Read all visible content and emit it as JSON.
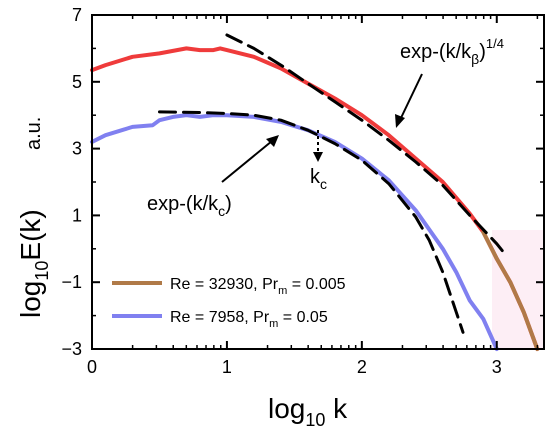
{
  "chart_data": {
    "type": "line",
    "xlabel": "log₁₀ k",
    "ylabel": "log₁₀E(k)",
    "yunit": "a.u.",
    "xlim": [
      0,
      3.35
    ],
    "ylim": [
      -3,
      7
    ],
    "xticks": [
      0,
      1,
      2,
      3
    ],
    "yticks": [
      -3,
      -1,
      1,
      3,
      5,
      7
    ],
    "xtick_labels": [
      "0",
      "1",
      "2",
      "3"
    ],
    "ytick_labels": [
      "−3",
      "−1",
      "1",
      "3",
      "5",
      "7"
    ],
    "grid": false,
    "legend_position": "bottom-left",
    "series": [
      {
        "name": "Re = 32930,  Pr_m = 0.005",
        "color": "#ef3b3b",
        "tail_color": "#b07a48",
        "x": [
          0,
          0.1,
          0.3,
          0.5,
          0.7,
          0.8,
          0.9,
          0.95,
          1.0,
          1.2,
          1.4,
          1.6,
          1.8,
          2.0,
          2.2,
          2.4,
          2.6,
          2.8,
          2.9,
          3.0,
          3.1,
          3.2,
          3.3
        ],
        "y": [
          5.35,
          5.5,
          5.75,
          5.85,
          6.0,
          5.95,
          5.95,
          6.0,
          5.95,
          5.75,
          5.4,
          4.95,
          4.5,
          4.0,
          3.4,
          2.7,
          2.0,
          1.05,
          0.5,
          -0.3,
          -1.0,
          -1.9,
          -3.0
        ]
      },
      {
        "name": "Re = 7958,   Pr_m = 0.05",
        "color": "#8080f0",
        "x": [
          0,
          0.1,
          0.3,
          0.45,
          0.5,
          0.6,
          0.7,
          0.8,
          0.9,
          1.0,
          1.2,
          1.4,
          1.6,
          1.8,
          2.0,
          2.2,
          2.4,
          2.6,
          2.7,
          2.8,
          2.9,
          3.0
        ],
        "y": [
          3.2,
          3.4,
          3.65,
          3.7,
          3.85,
          3.95,
          4.0,
          3.95,
          4.0,
          4.0,
          3.95,
          3.8,
          3.55,
          3.2,
          2.7,
          2.05,
          1.15,
          0.0,
          -0.7,
          -1.55,
          -2.1,
          -3.0
        ]
      },
      {
        "name": "exp-(k/k_β)^1/4 fit",
        "style": "dashed",
        "color": "#000000",
        "x": [
          1.0,
          1.2,
          1.4,
          1.6,
          1.8,
          2.0,
          2.2,
          2.4,
          2.6,
          2.8,
          3.0,
          3.07
        ],
        "y": [
          6.4,
          6.0,
          5.5,
          4.95,
          4.4,
          3.85,
          3.25,
          2.6,
          1.9,
          1.0,
          0.15,
          -0.2
        ]
      },
      {
        "name": "exp-(k/k_c) fit",
        "style": "dashed",
        "color": "#000000",
        "x": [
          0.5,
          0.8,
          1.0,
          1.2,
          1.4,
          1.6,
          1.8,
          2.0,
          2.2,
          2.4,
          2.5,
          2.6,
          2.7,
          2.75
        ],
        "y": [
          4.1,
          4.08,
          4.05,
          4.0,
          3.85,
          3.55,
          3.15,
          2.65,
          1.95,
          0.95,
          0.25,
          -0.7,
          -1.9,
          -2.5
        ]
      }
    ],
    "annotations": {
      "kbeta_label": "exp-(k/kβ)¹ᐟ⁴",
      "kc_label": "exp-(k/kc)",
      "kc_marker": "kc"
    }
  },
  "labels": {
    "ylabel_main": "log",
    "ylabel_sub": "10",
    "ylabel_tail": "E(k)",
    "yunit": "a.u.",
    "xlabel_main": "log",
    "xlabel_sub": "10",
    "xlabel_tail": " k",
    "ann1_main": "exp-(k/k",
    "ann1_sub": "β",
    "ann1_tail": ")",
    "ann1_sup": "1/4",
    "ann2_main": "exp-(k/k",
    "ann2_sub": "c",
    "ann2_tail": ")",
    "kc_main": "k",
    "kc_sub": "c",
    "legend1_a": "Re = 32930,  Pr",
    "legend1_sub": "m",
    "legend1_b": " = 0.005",
    "legend2_a": "Re = 7958,   Pr",
    "legend2_sub": "m",
    "legend2_b": " = 0.05"
  }
}
